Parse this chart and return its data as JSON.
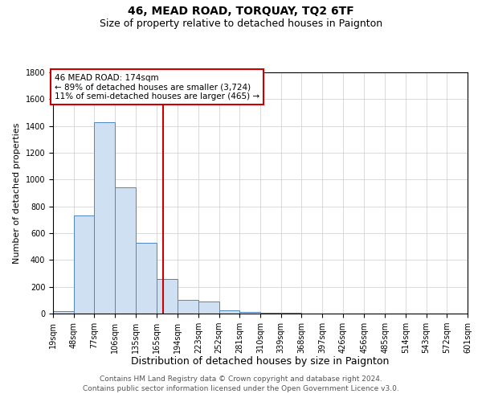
{
  "title": "46, MEAD ROAD, TORQUAY, TQ2 6TF",
  "subtitle": "Size of property relative to detached houses in Paignton",
  "xlabel": "Distribution of detached houses by size in Paignton",
  "ylabel": "Number of detached properties",
  "footer_line1": "Contains HM Land Registry data © Crown copyright and database right 2024.",
  "footer_line2": "Contains public sector information licensed under the Open Government Licence v3.0.",
  "bin_labels": [
    "19sqm",
    "48sqm",
    "77sqm",
    "106sqm",
    "135sqm",
    "165sqm",
    "194sqm",
    "223sqm",
    "252sqm",
    "281sqm",
    "310sqm",
    "339sqm",
    "368sqm",
    "397sqm",
    "426sqm",
    "456sqm",
    "485sqm",
    "514sqm",
    "543sqm",
    "572sqm",
    "601sqm"
  ],
  "bin_edges": [
    19,
    48,
    77,
    106,
    135,
    165,
    194,
    223,
    252,
    281,
    310,
    339,
    368,
    397,
    426,
    456,
    485,
    514,
    543,
    572,
    601
  ],
  "bar_heights": [
    20,
    735,
    1430,
    940,
    530,
    260,
    105,
    90,
    25,
    15,
    8,
    5,
    2,
    2,
    1,
    0,
    0,
    0,
    0,
    0
  ],
  "bar_color": "#cfe0f2",
  "bar_edge_color": "#4e86c4",
  "red_line_x": 174,
  "red_line_color": "#cc0000",
  "annotation_text": "46 MEAD ROAD: 174sqm\n← 89% of detached houses are smaller (3,724)\n11% of semi-detached houses are larger (465) →",
  "annotation_box_color": "#ffffff",
  "annotation_box_edge_color": "#cc0000",
  "ylim": [
    0,
    1800
  ],
  "yticks": [
    0,
    200,
    400,
    600,
    800,
    1000,
    1200,
    1400,
    1600,
    1800
  ],
  "background_color": "#ffffff",
  "grid_color": "#cccccc",
  "title_fontsize": 10,
  "subtitle_fontsize": 9,
  "xlabel_fontsize": 9,
  "ylabel_fontsize": 8,
  "tick_fontsize": 7,
  "annotation_fontsize": 7.5,
  "footer_fontsize": 6.5
}
